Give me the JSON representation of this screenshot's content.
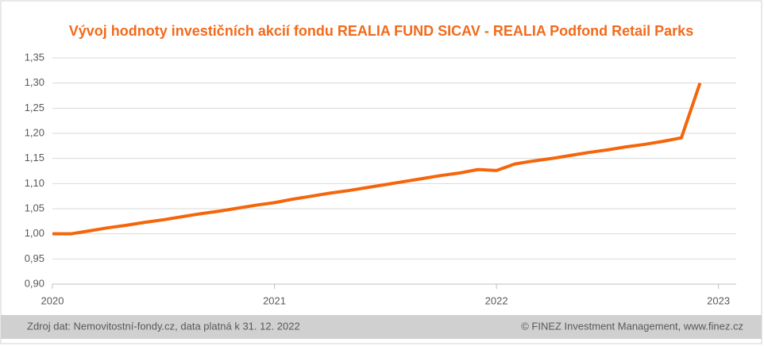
{
  "chart_data": {
    "type": "line",
    "title": "Vývoj hodnoty investičních akcií fondu REALIA FUND SICAV - REALIA Podfond Retail Parks",
    "x": [
      2020,
      2020.083,
      2020.167,
      2020.25,
      2020.333,
      2020.417,
      2020.5,
      2020.583,
      2020.667,
      2020.75,
      2020.833,
      2020.917,
      2021,
      2021.083,
      2021.167,
      2021.25,
      2021.333,
      2021.417,
      2021.5,
      2021.583,
      2021.667,
      2021.75,
      2021.833,
      2021.917,
      2022,
      2022.083,
      2022.167,
      2022.25,
      2022.333,
      2022.417,
      2022.5,
      2022.583,
      2022.667,
      2022.75,
      2022.833,
      2022.917
    ],
    "series": [
      {
        "color": "#f5650a",
        "values": [
          1.0,
          1.0,
          1.006,
          1.012,
          1.017,
          1.023,
          1.028,
          1.034,
          1.04,
          1.045,
          1.051,
          1.057,
          1.062,
          1.069,
          1.075,
          1.081,
          1.086,
          1.092,
          1.098,
          1.104,
          1.11,
          1.116,
          1.121,
          1.128,
          1.126,
          1.139,
          1.145,
          1.15,
          1.156,
          1.162,
          1.167,
          1.173,
          1.178,
          1.184,
          1.191,
          1.3
        ]
      }
    ],
    "xlim": [
      2020,
      2023.08
    ],
    "xticks": [
      2020,
      2021,
      2022,
      2023
    ],
    "ylim": [
      0.9,
      1.35
    ],
    "yticks": [
      {
        "value": 0.9,
        "label": "0,90"
      },
      {
        "value": 0.95,
        "label": "0,95"
      },
      {
        "value": 1.0,
        "label": "1,00"
      },
      {
        "value": 1.05,
        "label": "1,05"
      },
      {
        "value": 1.1,
        "label": "1,10"
      },
      {
        "value": 1.15,
        "label": "1,15"
      },
      {
        "value": 1.2,
        "label": "1,20"
      },
      {
        "value": 1.25,
        "label": "1,25"
      },
      {
        "value": 1.3,
        "label": "1,30"
      },
      {
        "value": 1.35,
        "label": "1,35"
      }
    ],
    "grid": true
  },
  "footer": {
    "source": "Zdroj dat: Nemovitostní-fondy.cz, data platná k 31. 12. 2022",
    "copyright": "© FINEZ Investment Management, www.finez.cz"
  }
}
